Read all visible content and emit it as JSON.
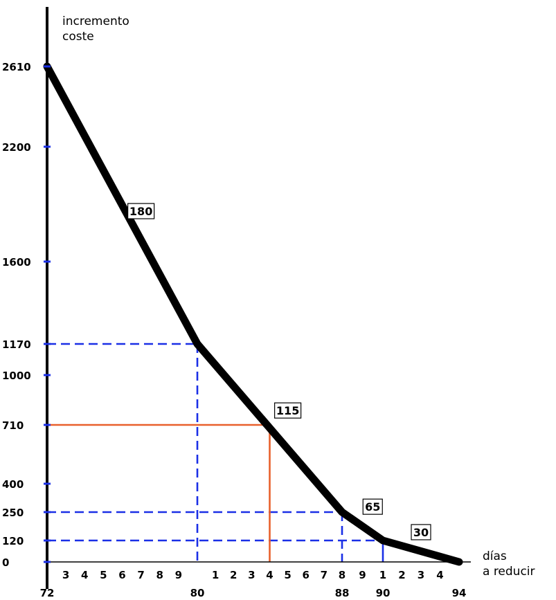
{
  "chart_data": {
    "type": "line",
    "ylabel": [
      "incremento",
      "coste"
    ],
    "xlabel": [
      "días",
      "a reducir"
    ],
    "x": [
      72,
      80,
      88,
      90,
      94
    ],
    "y": [
      2610,
      1170,
      250,
      120,
      0
    ],
    "xlim": [
      72,
      94
    ],
    "ylim": [
      0,
      2610
    ],
    "y_ticks": [
      2610,
      2200,
      1600,
      1170,
      1000,
      710,
      400,
      250,
      120,
      0
    ],
    "x_major_ticks": [
      72,
      80,
      88,
      90,
      94
    ],
    "x_minor_labels": [
      {
        "x": 73,
        "label": "3"
      },
      {
        "x": 74,
        "label": "4"
      },
      {
        "x": 75,
        "label": "5"
      },
      {
        "x": 76,
        "label": "6"
      },
      {
        "x": 77,
        "label": "7"
      },
      {
        "x": 78,
        "label": "8"
      },
      {
        "x": 79,
        "label": "9"
      },
      {
        "x": 81,
        "label": "1"
      },
      {
        "x": 82,
        "label": "2"
      },
      {
        "x": 83,
        "label": "3"
      },
      {
        "x": 84,
        "label": "4"
      },
      {
        "x": 85,
        "label": "5"
      },
      {
        "x": 86,
        "label": "6"
      },
      {
        "x": 87,
        "label": "7"
      },
      {
        "x": 88,
        "label": "8"
      },
      {
        "x": 89,
        "label": "9"
      },
      {
        "x": 90,
        "label": "1"
      },
      {
        "x": 91,
        "label": "2"
      },
      {
        "x": 92,
        "label": "3"
      },
      {
        "x": 93,
        "label": "4"
      }
    ],
    "slope_labels": [
      {
        "label": "180",
        "x": 77,
        "y": 1860
      },
      {
        "label": "115",
        "x": 85,
        "y": 790
      },
      {
        "label": "65",
        "x": 89.5,
        "y": 275
      },
      {
        "label": "30",
        "x": 92,
        "y": 155
      }
    ],
    "reference_lines": [
      {
        "x": 80,
        "y": 1170,
        "style": "dashed",
        "color": "#1a2fe6"
      },
      {
        "x": 88,
        "y": 250,
        "style": "dashed",
        "color": "#1a2fe6"
      },
      {
        "x": 90,
        "y": 120,
        "style": "dashed-h-solid-v",
        "color": "#1a2fe6"
      },
      {
        "x": 84,
        "y": 710,
        "style": "solid",
        "color": "#e8602c"
      }
    ],
    "grid": false
  }
}
